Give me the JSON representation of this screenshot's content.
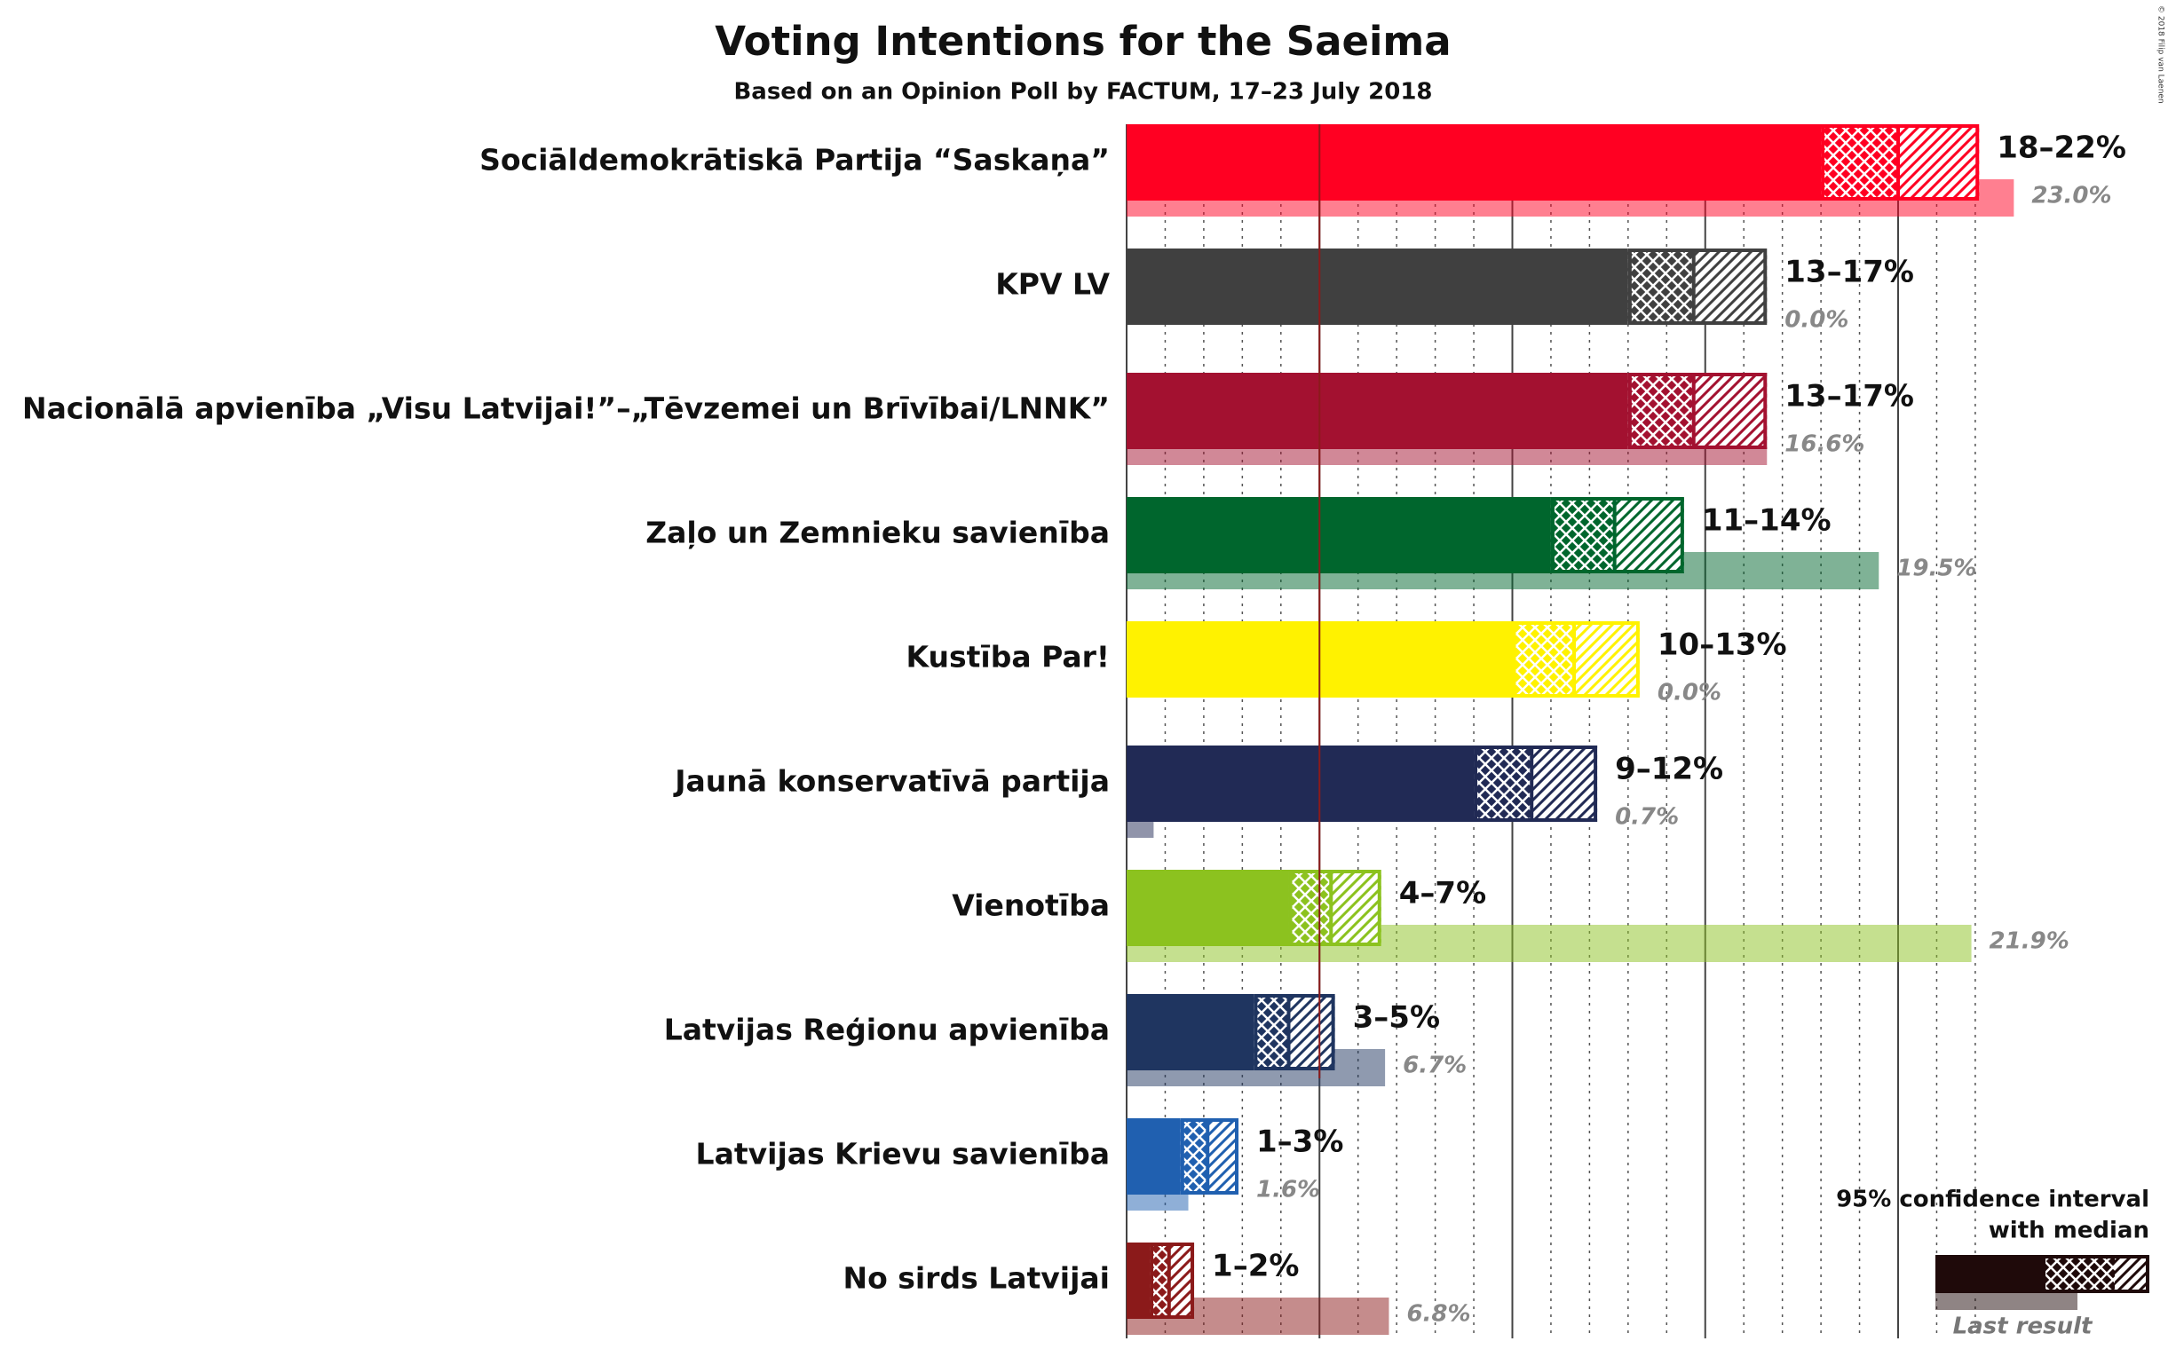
{
  "chart_data": {
    "type": "interval_bar",
    "title": "Voting Intentions for the Saeima",
    "subtitle": "Based on an Opinion Poll by FACTUM, 17–23 July 2018",
    "copyright": "© 2018 Filip van Laenen",
    "categories": [
      "Sociāldemokrātiskā Partija “Saskaņa”",
      "KPV LV",
      "Nacionālā apvienība „Visu Latvijai!”–„Tēvzemei un Brīvībai/LNNK”",
      "Zaļo un Zemnieku savienība",
      "Kustība Par!",
      "Jaunā konservatīvā partija",
      "Vienotība",
      "Latvijas Reģionu apvienība",
      "Latvijas Krievu savienība",
      "No sirds Latvijai"
    ],
    "colors": [
      "#ff0022",
      "#404040",
      "#a31130",
      "#00662d",
      "#fff200",
      "#212a55",
      "#8cc21f",
      "#1f3560",
      "#2060b0",
      "#8b1a1a"
    ],
    "ci_low": [
      18.0,
      13.0,
      13.0,
      11.0,
      10.0,
      9.0,
      4.2,
      3.3,
      1.4,
      0.6
    ],
    "median": [
      20.0,
      14.7,
      14.7,
      12.65,
      11.6,
      10.5,
      5.3,
      4.2,
      2.1,
      1.1
    ],
    "ci_high": [
      22.1,
      16.6,
      16.6,
      14.45,
      13.3,
      12.2,
      6.6,
      5.4,
      2.9,
      1.75
    ],
    "range_labels": [
      "18–22%",
      "13–17%",
      "13–17%",
      "11–14%",
      "10–13%",
      "9–12%",
      "4–7%",
      "3–5%",
      "1–3%",
      "1–2%"
    ],
    "last_result": [
      23.0,
      0.0,
      16.6,
      19.5,
      0.0,
      0.7,
      21.9,
      6.7,
      1.6,
      6.8
    ],
    "last_result_labels": [
      "23.0%",
      "0.0%",
      "16.6%",
      "19.5%",
      "0.0%",
      "0.7%",
      "21.9%",
      "6.7%",
      "1.6%",
      "6.8%"
    ],
    "threshold": 5,
    "threshold_color": "#8b1a1a",
    "xlim": [
      0,
      26
    ],
    "xticks": [
      0,
      1,
      2,
      3,
      4,
      5,
      6,
      7,
      8,
      9,
      10,
      11,
      12,
      13,
      14,
      15,
      16,
      17,
      18,
      19,
      20,
      21,
      22
    ],
    "legend": {
      "title_lines": [
        "95% confidence interval",
        "with median"
      ],
      "last_result": "Last result",
      "color": "#1f0a0a"
    }
  }
}
